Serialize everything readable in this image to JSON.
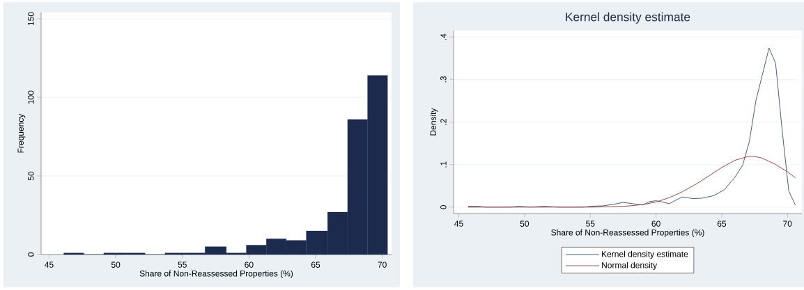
{
  "chart_data": [
    {
      "type": "histogram",
      "xlabel": "Share of Non-Reassessed Properties (%)",
      "ylabel": "Frequency",
      "color": "#1c2a4e",
      "bins": [
        46.1,
        47.6,
        49.1,
        50.7,
        52.2,
        53.7,
        55.2,
        56.7,
        58.3,
        59.8,
        61.3,
        62.8,
        64.3,
        65.9,
        67.4,
        68.9,
        70.4
      ],
      "values": [
        1,
        0,
        1,
        1,
        0,
        1,
        1,
        5,
        1,
        6,
        10,
        9,
        15,
        27,
        86,
        114
      ],
      "xlim": [
        44.4,
        70.7
      ],
      "ylim": [
        0,
        154
      ],
      "xticks": [
        45,
        50,
        55,
        60,
        65,
        70
      ],
      "yticks": [
        0,
        50,
        100,
        150
      ],
      "grid": "y"
    },
    {
      "type": "line",
      "title": "Kernel density estimate",
      "xlabel": "Share of Non-Reassessed Properties (%)",
      "ylabel": "Density",
      "series": [
        {
          "name": "Kernel density estimate",
          "color": "#3a5273",
          "x": [
            45.7,
            46.5,
            47,
            49,
            49.5,
            50.5,
            51.5,
            52.5,
            54.5,
            55,
            56,
            57,
            57.5,
            58,
            59,
            59.5,
            60,
            60.5,
            61,
            62,
            62.8,
            63.5,
            64.4,
            65.2,
            66,
            66.6,
            67.1,
            67.6,
            68.6,
            69.1,
            69.6,
            70.1,
            70.6
          ],
          "values": [
            0.002,
            0.002,
            0,
            0,
            0.002,
            0,
            0.002,
            0,
            0,
            0.002,
            0.003,
            0.008,
            0.011,
            0.009,
            0.005,
            0.013,
            0.015,
            0.012,
            0.008,
            0.024,
            0.02,
            0.021,
            0.027,
            0.041,
            0.07,
            0.099,
            0.154,
            0.25,
            0.374,
            0.338,
            0.18,
            0.038,
            0.005
          ]
        },
        {
          "name": "Normal density",
          "color": "#8e3b3b",
          "x": [
            45.7,
            55,
            57,
            58,
            59,
            60,
            61,
            62,
            63,
            64,
            65,
            66,
            67,
            67.3,
            68,
            69,
            70,
            70.6
          ],
          "values": [
            0,
            0,
            0.001,
            0.003,
            0.006,
            0.012,
            0.022,
            0.036,
            0.053,
            0.073,
            0.093,
            0.11,
            0.119,
            0.12,
            0.116,
            0.102,
            0.083,
            0.069
          ]
        }
      ],
      "xlim": [
        44.6,
        71.1
      ],
      "ylim": [
        -0.015,
        0.415
      ],
      "xticks": [
        45,
        50,
        55,
        60,
        65,
        70
      ],
      "yticks": [
        0,
        {
          "value": 0.1,
          "label": ".1"
        },
        {
          "value": 0.2,
          "label": ".2"
        },
        {
          "value": 0.3,
          "label": ".3"
        },
        {
          "value": 0.4,
          "label": ".4"
        }
      ],
      "grid": "y",
      "legend": "bottom",
      "marker": "none",
      "line_style": "solid"
    }
  ]
}
